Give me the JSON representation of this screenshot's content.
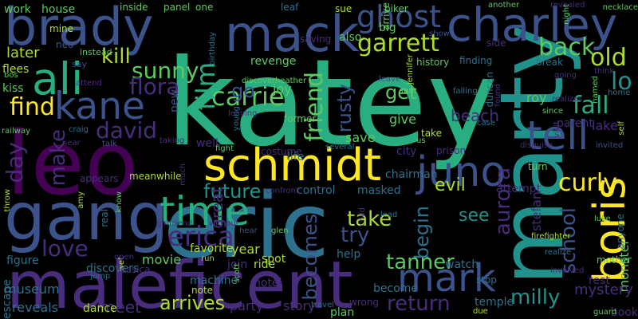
{
  "palette": {
    "background": "#000000",
    "purple": "#440154",
    "indigo": "#472d7b",
    "blue": "#3b528b",
    "teal": "#2c728e",
    "cyan": "#21918c",
    "green": "#28ae80",
    "lime": "#5ec962",
    "yellowgreen": "#addc30",
    "yellow": "#fde725"
  },
  "words": [
    {
      "text": "katey",
      "color": "green"
    },
    {
      "text": "eric",
      "color": "teal"
    },
    {
      "text": "marty",
      "color": "cyan"
    },
    {
      "text": "maleficent",
      "color": "indigo"
    },
    {
      "text": "leo",
      "color": "purple"
    },
    {
      "text": "gang",
      "color": "blue"
    },
    {
      "text": "brady",
      "color": "blue"
    },
    {
      "text": "mack",
      "color": "blue"
    },
    {
      "text": "charley",
      "color": "blue"
    },
    {
      "text": "schmidt",
      "color": "yellow"
    },
    {
      "text": "time",
      "color": "green"
    },
    {
      "text": "juno",
      "color": "blue"
    },
    {
      "text": "ali",
      "color": "green"
    },
    {
      "text": "kane",
      "color": "blue"
    },
    {
      "text": "tell",
      "color": "blue"
    },
    {
      "text": "boris",
      "color": "yellow"
    },
    {
      "text": "mark",
      "color": "blue"
    },
    {
      "text": "ghost",
      "color": "blue"
    },
    {
      "text": "carrie",
      "color": "lime"
    },
    {
      "text": "garrett",
      "color": "yellowgreen"
    },
    {
      "text": "back",
      "color": "lime"
    },
    {
      "text": "film",
      "color": "green"
    },
    {
      "text": "sunny",
      "color": "lime"
    },
    {
      "text": "kill",
      "color": "yellowgreen"
    },
    {
      "text": "find",
      "color": "yellow"
    },
    {
      "text": "flora",
      "color": "indigo"
    },
    {
      "text": "david",
      "color": "indigo"
    },
    {
      "text": "day",
      "color": "indigo"
    },
    {
      "text": "make",
      "color": "indigo"
    },
    {
      "text": "love",
      "color": "indigo"
    },
    {
      "text": "erica",
      "color": "indigo"
    },
    {
      "text": "friend",
      "color": "lime"
    },
    {
      "text": "fall",
      "color": "green"
    },
    {
      "text": "curly",
      "color": "yellow"
    },
    {
      "text": "old",
      "color": "yellowgreen"
    },
    {
      "text": "lo",
      "color": "cyan"
    },
    {
      "text": "take",
      "color": "yellowgreen"
    },
    {
      "text": "future",
      "color": "cyan"
    },
    {
      "text": "try",
      "color": "blue"
    },
    {
      "text": "return",
      "color": "indigo"
    },
    {
      "text": "school",
      "color": "blue"
    },
    {
      "text": "milly",
      "color": "cyan"
    },
    {
      "text": "aurora",
      "color": "indigo"
    },
    {
      "text": "tanner",
      "color": "lime"
    },
    {
      "text": "becomes",
      "color": "blue"
    },
    {
      "text": "begin",
      "color": "teal"
    },
    {
      "text": "see",
      "color": "cyan"
    },
    {
      "text": "evil",
      "color": "yellowgreen"
    },
    {
      "text": "get",
      "color": "lime"
    },
    {
      "text": "go",
      "color": "blue"
    },
    {
      "text": "rusty",
      "color": "blue"
    },
    {
      "text": "beach",
      "color": "indigo"
    },
    {
      "text": "meet",
      "color": "indigo"
    },
    {
      "text": "arrives",
      "color": "yellowgreen"
    },
    {
      "text": "later",
      "color": "yellowgreen"
    },
    {
      "text": "work",
      "color": "lime"
    },
    {
      "text": "house",
      "color": "lime"
    },
    {
      "text": "museum",
      "color": "teal"
    },
    {
      "text": "reveals",
      "color": "teal"
    },
    {
      "text": "party",
      "color": "indigo"
    },
    {
      "text": "story",
      "color": "indigo"
    },
    {
      "text": "movie",
      "color": "lime"
    },
    {
      "text": "monster",
      "color": "lime"
    },
    {
      "text": "mystery",
      "color": "indigo"
    },
    {
      "text": "lake",
      "color": "indigo"
    },
    {
      "text": "stefan",
      "color": "indigo"
    },
    {
      "text": "roy",
      "color": "lime"
    },
    {
      "text": "give",
      "color": "lime"
    },
    {
      "text": "save",
      "color": "lime"
    },
    {
      "text": "joy",
      "color": "lime"
    },
    {
      "text": "great",
      "color": "indigo"
    },
    {
      "text": "control",
      "color": "teal"
    },
    {
      "text": "masked",
      "color": "teal"
    },
    {
      "text": "help",
      "color": "teal"
    },
    {
      "text": "attempt",
      "color": "indigo"
    },
    {
      "text": "rest",
      "color": "indigo"
    },
    {
      "text": "book",
      "color": "indigo"
    },
    {
      "text": "temple",
      "color": "teal"
    },
    {
      "text": "watch",
      "color": "teal"
    },
    {
      "text": "year",
      "color": "yellowgreen"
    },
    {
      "text": "favorite",
      "color": "yellowgreen"
    },
    {
      "text": "spot",
      "color": "yellowgreen"
    },
    {
      "text": "hotel",
      "color": "indigo"
    },
    {
      "text": "escape",
      "color": "teal"
    },
    {
      "text": "dance",
      "color": "yellowgreen"
    },
    {
      "text": "figure",
      "color": "teal"
    },
    {
      "text": "inside",
      "color": "lime"
    },
    {
      "text": "panel",
      "color": "lime"
    },
    {
      "text": "one",
      "color": "lime"
    },
    {
      "text": "leaf",
      "color": "teal"
    },
    {
      "text": "sue",
      "color": "yellowgreen"
    },
    {
      "text": "biker",
      "color": "lime"
    },
    {
      "text": "another",
      "color": "lime"
    },
    {
      "text": "revealed",
      "color": "indigo"
    },
    {
      "text": "necklace",
      "color": "lime"
    },
    {
      "text": "night",
      "color": "lime"
    },
    {
      "text": "mine",
      "color": "yellowgreen"
    },
    {
      "text": "neo",
      "color": "blue"
    },
    {
      "text": "instead",
      "color": "lime"
    },
    {
      "text": "say",
      "color": "blue"
    },
    {
      "text": "big",
      "color": "lime"
    },
    {
      "text": "show",
      "color": "blue"
    },
    {
      "text": "saving",
      "color": "indigo"
    },
    {
      "text": "also",
      "color": "lime"
    },
    {
      "text": "arrive",
      "color": "lime"
    },
    {
      "text": "history",
      "color": "lime"
    },
    {
      "text": "finding",
      "color": "teal"
    },
    {
      "text": "duncan",
      "color": "teal"
    },
    {
      "text": "side",
      "color": "indigo"
    },
    {
      "text": "break",
      "color": "teal"
    },
    {
      "text": "going",
      "color": "indigo"
    },
    {
      "text": "think",
      "color": "indigo"
    },
    {
      "text": "named",
      "color": "lime"
    },
    {
      "text": "home",
      "color": "teal"
    },
    {
      "text": "flees",
      "color": "yellowgreen"
    },
    {
      "text": "kiss",
      "color": "lime"
    },
    {
      "text": "bos",
      "color": "lime"
    },
    {
      "text": "attend",
      "color": "indigo"
    },
    {
      "text": "birthday",
      "color": "teal"
    },
    {
      "text": "revenge",
      "color": "lime"
    },
    {
      "text": "discoverheather",
      "color": "lime"
    },
    {
      "text": "leave",
      "color": "blue"
    },
    {
      "text": "jennifer",
      "color": "yellowgreen"
    },
    {
      "text": "aunt",
      "color": "lime"
    },
    {
      "text": "falling",
      "color": "teal"
    },
    {
      "text": "found",
      "color": "indigo"
    },
    {
      "text": "realizes",
      "color": "indigo"
    },
    {
      "text": "since",
      "color": "lime"
    },
    {
      "text": "parent",
      "color": "indigo"
    },
    {
      "text": "new",
      "color": "blue"
    },
    {
      "text": "leaving",
      "color": "indigo"
    },
    {
      "text": "young",
      "color": "teal"
    },
    {
      "text": "former",
      "color": "lime"
    },
    {
      "text": "life",
      "color": "teal"
    },
    {
      "text": "take",
      "color": "yellowgreen"
    },
    {
      "text": "us",
      "color": "lime"
    },
    {
      "text": "case",
      "color": "teal"
    },
    {
      "text": "visit",
      "color": "indigo"
    },
    {
      "text": "disguise",
      "color": "indigo"
    },
    {
      "text": "invited",
      "color": "blue"
    },
    {
      "text": "self",
      "color": "yellowgreen"
    },
    {
      "text": "railway",
      "color": "lime"
    },
    {
      "text": "craig",
      "color": "teal"
    },
    {
      "text": "talk",
      "color": "blue"
    },
    {
      "text": "near",
      "color": "indigo"
    },
    {
      "text": "taking",
      "color": "indigo"
    },
    {
      "text": "well",
      "color": "indigo"
    },
    {
      "text": "fight",
      "color": "lime"
    },
    {
      "text": "costume",
      "color": "indigo"
    },
    {
      "text": "several",
      "color": "teal"
    },
    {
      "text": "city",
      "color": "indigo"
    },
    {
      "text": "prison",
      "color": "indigo"
    },
    {
      "text": "chairman",
      "color": "teal"
    },
    {
      "text": "turn",
      "color": "lime"
    },
    {
      "text": "meanwhile",
      "color": "yellowgreen"
    },
    {
      "text": "much",
      "color": "indigo"
    },
    {
      "text": "appears",
      "color": "indigo"
    },
    {
      "text": "throw",
      "color": "yellowgreen"
    },
    {
      "text": "amy",
      "color": "yellowgreen"
    },
    {
      "text": "real",
      "color": "teal"
    },
    {
      "text": "know",
      "color": "lime"
    },
    {
      "text": "girlfriend",
      "color": "indigo"
    },
    {
      "text": "without",
      "color": "indigo"
    },
    {
      "text": "confront",
      "color": "indigo"
    },
    {
      "text": "hear",
      "color": "blue"
    },
    {
      "text": "glen",
      "color": "lime"
    },
    {
      "text": "lead",
      "color": "teal"
    },
    {
      "text": "child",
      "color": "indigo"
    },
    {
      "text": "firefighter",
      "color": "yellowgreen"
    },
    {
      "text": "realize",
      "color": "teal"
    },
    {
      "text": "involved",
      "color": "indigo"
    },
    {
      "text": "mother",
      "color": "lime"
    },
    {
      "text": "luke",
      "color": "lime"
    },
    {
      "text": "anyone",
      "color": "teal"
    },
    {
      "text": "discovers",
      "color": "teal"
    },
    {
      "text": "wet",
      "color": "yellowgreen"
    },
    {
      "text": "jump",
      "color": "teal"
    },
    {
      "text": "open",
      "color": "indigo"
    },
    {
      "text": "jessica",
      "color": "indigo"
    },
    {
      "text": "run",
      "color": "yellowgreen"
    },
    {
      "text": "join",
      "color": "indigo"
    },
    {
      "text": "machine",
      "color": "teal"
    },
    {
      "text": "note",
      "color": "yellowgreen"
    },
    {
      "text": "ride",
      "color": "yellowgreen"
    },
    {
      "text": "scott",
      "color": "lime"
    },
    {
      "text": "travel",
      "color": "teal"
    },
    {
      "text": "wrong",
      "color": "indigo"
    },
    {
      "text": "plan",
      "color": "lime"
    },
    {
      "text": "become",
      "color": "teal"
    },
    {
      "text": "stop",
      "color": "teal"
    },
    {
      "text": "due",
      "color": "yellowgreen"
    },
    {
      "text": "guard",
      "color": "lime"
    },
    {
      "text": "refuse",
      "color": "indigo"
    }
  ]
}
